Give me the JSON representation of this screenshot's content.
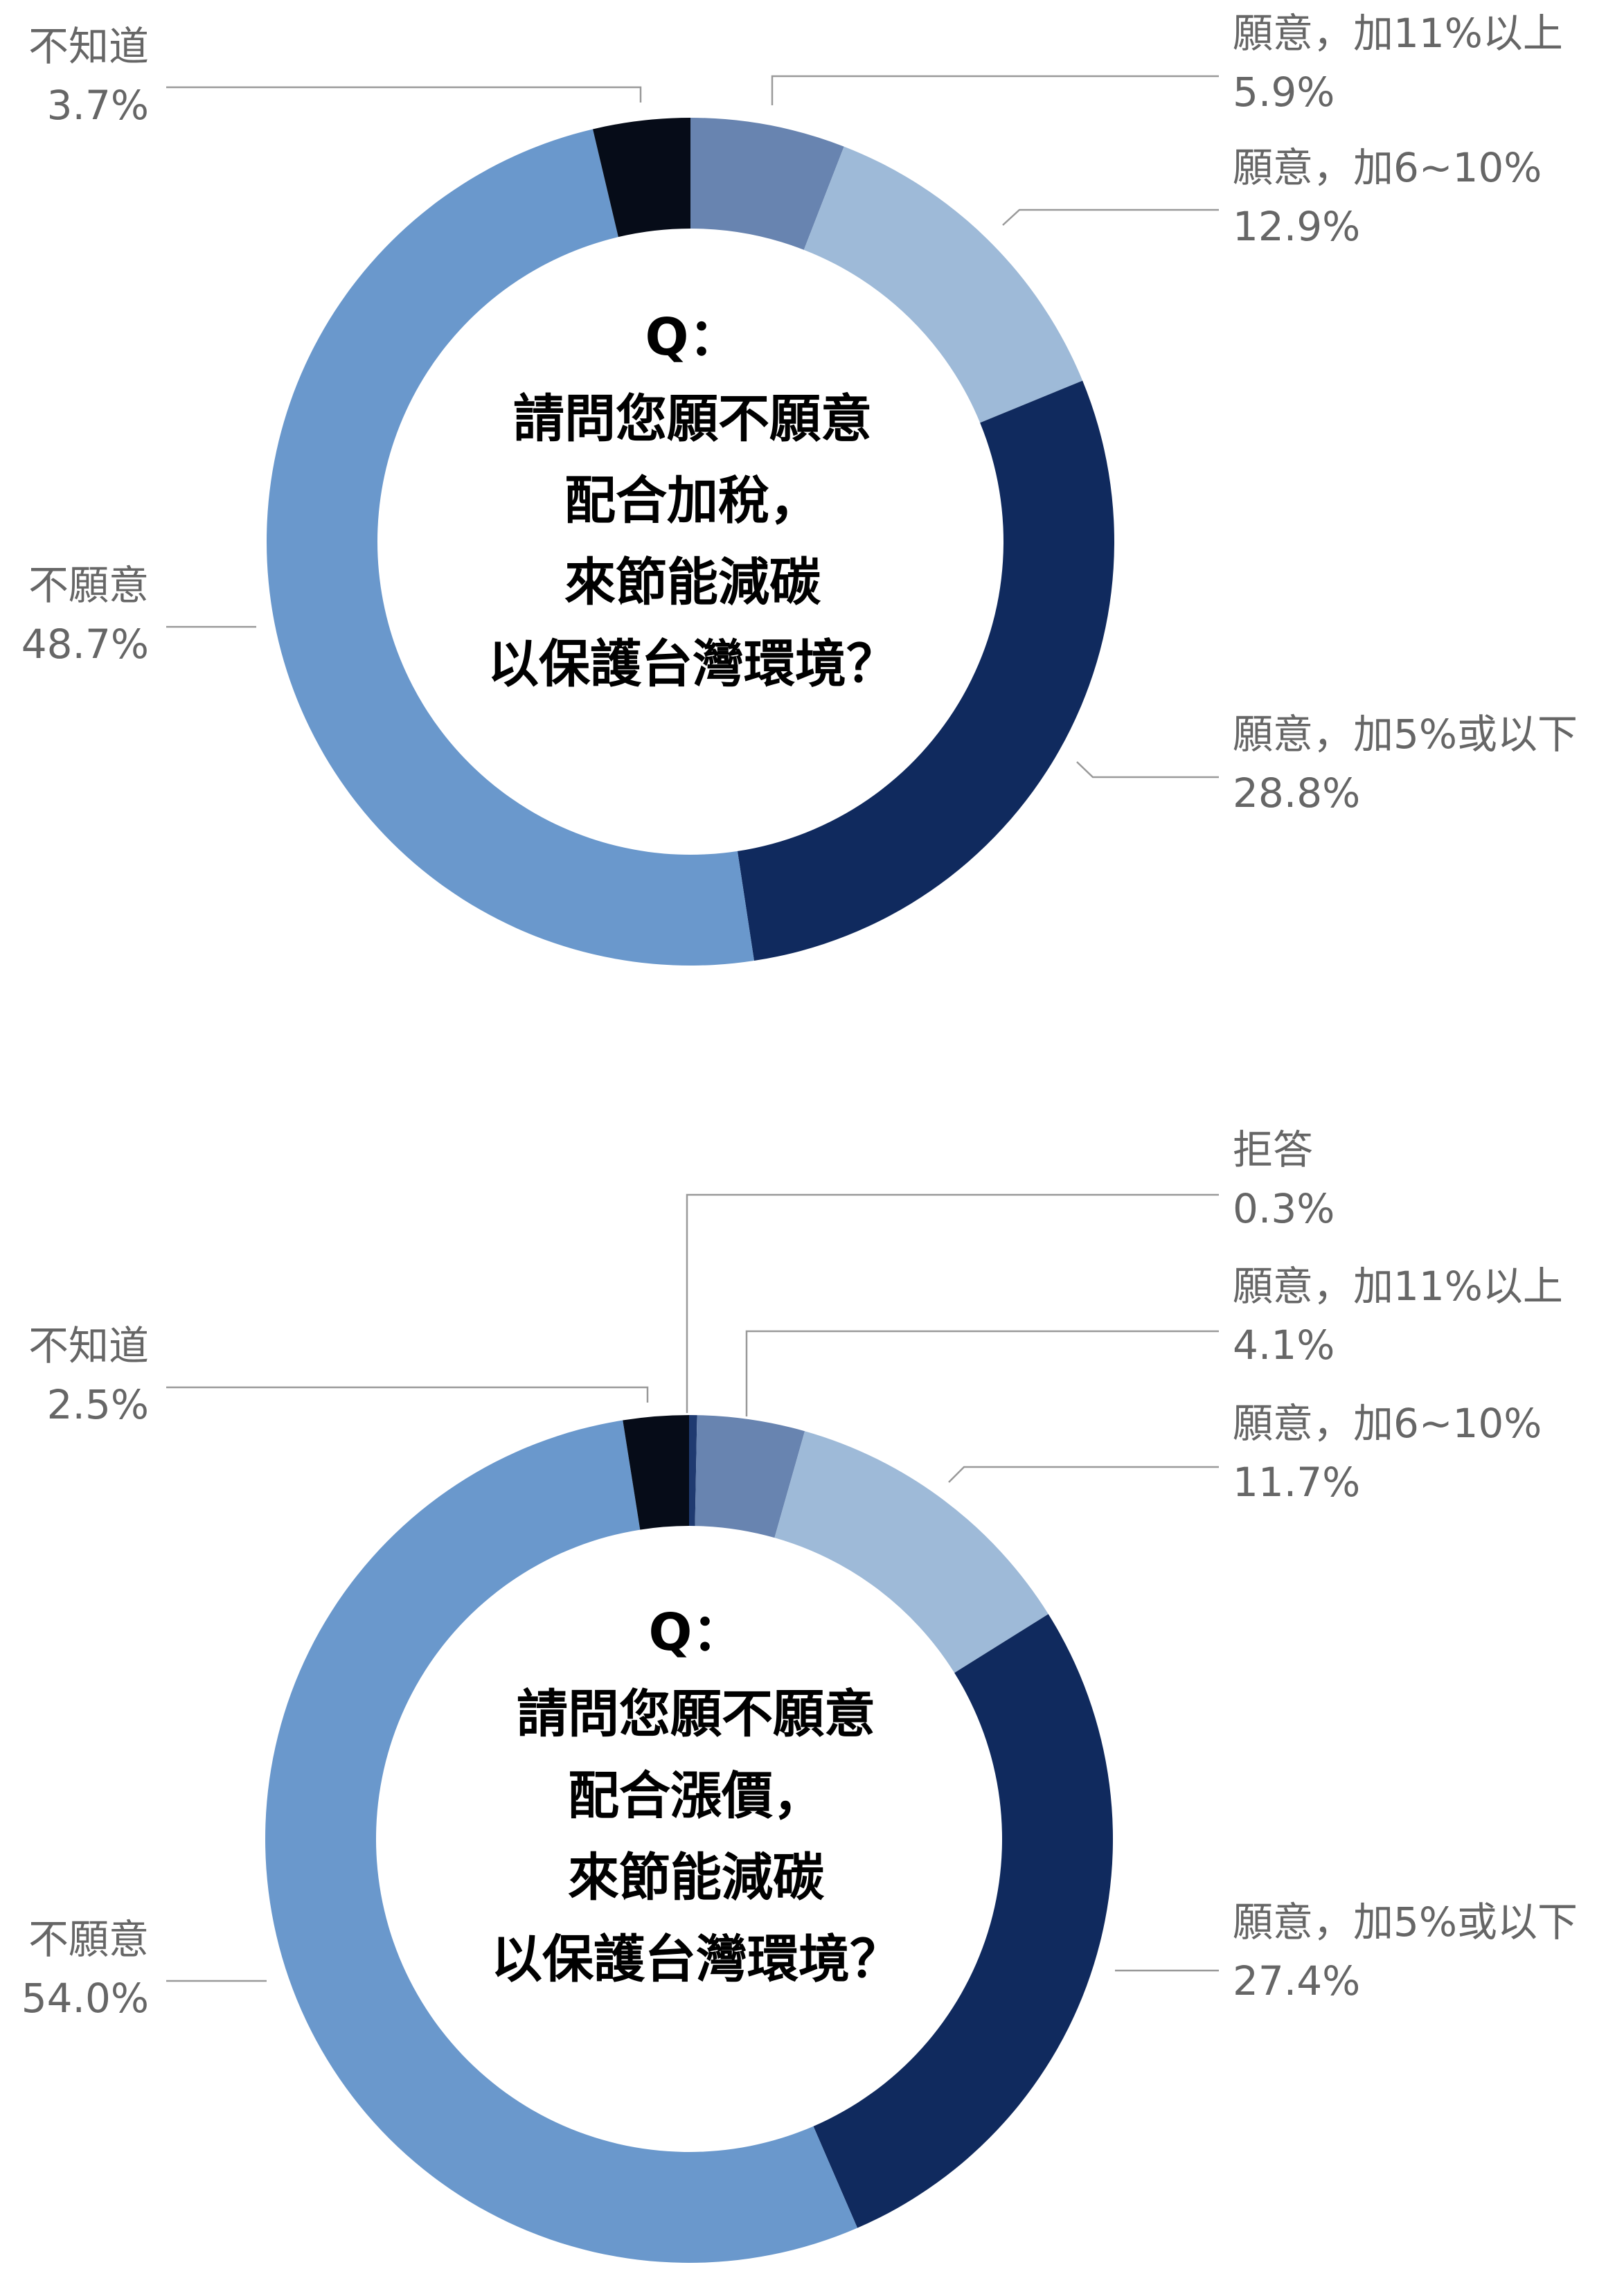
{
  "colors": {
    "dont_know": "#060c18",
    "refuse": "#1f3a70",
    "plus_11_up": "#6884b0",
    "plus_6_10": "#9ebad8",
    "plus_5_below": "#102a5e",
    "unwilling": "#6a98cc"
  },
  "chart_data": [
    {
      "type": "pie",
      "donut": true,
      "center_text": [
        "Q：",
        "請問您願不願意",
        "配合加稅，",
        "來節能減碳",
        "以保護台灣環境？"
      ],
      "slices": [
        {
          "label": "願意，加11%以上",
          "value": 5.9,
          "value_label": "5.9%",
          "color": "#6884b0"
        },
        {
          "label": "願意，加6~10%",
          "value": 12.9,
          "value_label": "12.9%",
          "color": "#9ebad8"
        },
        {
          "label": "願意，加5%或以下",
          "value": 28.8,
          "value_label": "28.8%",
          "color": "#102a5e"
        },
        {
          "label": "不願意",
          "value": 48.7,
          "value_label": "48.7%",
          "color": "#6a98cc"
        },
        {
          "label": "不知道",
          "value": 3.7,
          "value_label": "3.7%",
          "color": "#060c18"
        }
      ]
    },
    {
      "type": "pie",
      "donut": true,
      "center_text": [
        "Q：",
        "請問您願不願意",
        "配合漲價，",
        "來節能減碳",
        "以保護台灣環境？"
      ],
      "slices": [
        {
          "label": "拒答",
          "value": 0.3,
          "value_label": "0.3%",
          "color": "#1f3a70"
        },
        {
          "label": "願意，加11%以上",
          "value": 4.1,
          "value_label": "4.1%",
          "color": "#6884b0"
        },
        {
          "label": "願意，加6~10%",
          "value": 11.7,
          "value_label": "11.7%",
          "color": "#9ebad8"
        },
        {
          "label": "願意，加5%或以下",
          "value": 27.4,
          "value_label": "27.4%",
          "color": "#102a5e"
        },
        {
          "label": "不願意",
          "value": 54.0,
          "value_label": "54.0%",
          "color": "#6a98cc"
        },
        {
          "label": "不知道",
          "value": 2.5,
          "value_label": "2.5%",
          "color": "#060c18"
        }
      ]
    }
  ]
}
